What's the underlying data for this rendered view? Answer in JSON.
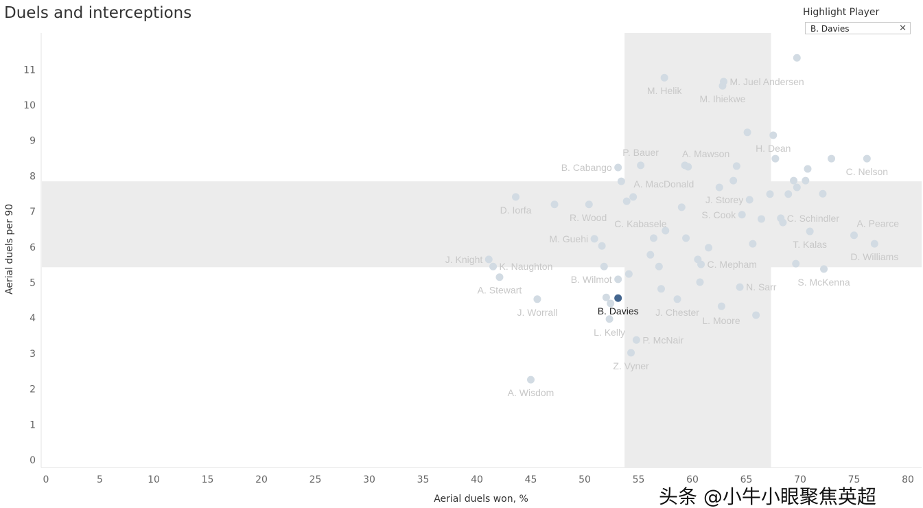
{
  "title": "Duels and interceptions",
  "filter": {
    "title": "Highlight Player",
    "value": "B. Davies",
    "clear_icon": "close-icon"
  },
  "watermark": "头条 @小牛小眼聚焦英超",
  "colors": {
    "point": "#d2dbe3",
    "highlight": "#44668f",
    "band": "#ececec",
    "label": "#c8c8c8"
  },
  "chart_data": {
    "type": "scatter",
    "title": "Duels and interceptions",
    "xlabel": "Aerial duels won, %",
    "ylabel": "Aerial duels per 90",
    "xlim": [
      0,
      80
    ],
    "ylim": [
      0,
      12
    ],
    "xticks": [
      0,
      5,
      10,
      15,
      20,
      25,
      30,
      35,
      40,
      45,
      50,
      55,
      60,
      65,
      70,
      75,
      80
    ],
    "yticks": [
      0,
      1,
      2,
      3,
      4,
      5,
      6,
      7,
      8,
      9,
      10,
      11
    ],
    "grid": false,
    "highlighted": "B. Davies",
    "bands": {
      "x_range": [
        53.7,
        67.3
      ],
      "y_range": [
        5.43,
        7.85
      ]
    },
    "points": [
      {
        "x": 69.7,
        "y": 11.33
      },
      {
        "x": 57.4,
        "y": 10.77,
        "name": "M. Helik"
      },
      {
        "x": 62.9,
        "y": 10.66,
        "name": "M. Juel Andersen"
      },
      {
        "x": 62.8,
        "y": 10.54,
        "name": "M. Ihiekwe"
      },
      {
        "x": 65.1,
        "y": 9.23
      },
      {
        "x": 67.5,
        "y": 9.15,
        "name": "H. Dean"
      },
      {
        "x": 67.7,
        "y": 8.49
      },
      {
        "x": 72.9,
        "y": 8.49
      },
      {
        "x": 76.2,
        "y": 8.49,
        "name": "C. Nelson"
      },
      {
        "x": 53.1,
        "y": 8.24,
        "name": "B. Cabango"
      },
      {
        "x": 55.2,
        "y": 8.3,
        "name": "P. Bauer"
      },
      {
        "x": 59.3,
        "y": 8.3,
        "name": "A. Mawson"
      },
      {
        "x": 59.6,
        "y": 8.26
      },
      {
        "x": 64.1,
        "y": 8.28
      },
      {
        "x": 70.7,
        "y": 8.2
      },
      {
        "x": 53.4,
        "y": 7.85,
        "name": "A. MacDonald"
      },
      {
        "x": 63.8,
        "y": 7.87
      },
      {
        "x": 69.4,
        "y": 7.87
      },
      {
        "x": 70.5,
        "y": 7.87
      },
      {
        "x": 62.5,
        "y": 7.68
      },
      {
        "x": 69.7,
        "y": 7.68
      },
      {
        "x": 67.2,
        "y": 7.49
      },
      {
        "x": 68.9,
        "y": 7.49
      },
      {
        "x": 72.1,
        "y": 7.5
      },
      {
        "x": 65.3,
        "y": 7.33,
        "name": "J. Storey"
      },
      {
        "x": 43.6,
        "y": 7.41,
        "name": "D. Iorfa"
      },
      {
        "x": 47.2,
        "y": 7.2
      },
      {
        "x": 50.4,
        "y": 7.2,
        "name": "R. Wood"
      },
      {
        "x": 54.5,
        "y": 7.41
      },
      {
        "x": 53.9,
        "y": 7.29,
        "name": "C. Kabasele"
      },
      {
        "x": 59.0,
        "y": 7.12
      },
      {
        "x": 64.6,
        "y": 6.91,
        "name": "S. Cook"
      },
      {
        "x": 66.4,
        "y": 6.79
      },
      {
        "x": 68.2,
        "y": 6.81,
        "name": "C. Schindler"
      },
      {
        "x": 68.4,
        "y": 6.69
      },
      {
        "x": 57.5,
        "y": 6.46
      },
      {
        "x": 70.9,
        "y": 6.44,
        "name": "T. Kalas"
      },
      {
        "x": 75.0,
        "y": 6.33,
        "name": "A. Pearce"
      },
      {
        "x": 76.9,
        "y": 6.09,
        "name": "D. Williams"
      },
      {
        "x": 50.9,
        "y": 6.23,
        "name": "M. Guehi"
      },
      {
        "x": 51.6,
        "y": 6.03
      },
      {
        "x": 56.4,
        "y": 6.25
      },
      {
        "x": 59.4,
        "y": 6.25
      },
      {
        "x": 65.6,
        "y": 6.09
      },
      {
        "x": 61.5,
        "y": 5.98
      },
      {
        "x": 56.1,
        "y": 5.78
      },
      {
        "x": 60.5,
        "y": 5.65
      },
      {
        "x": 60.8,
        "y": 5.51,
        "name": "C. Mepham"
      },
      {
        "x": 41.1,
        "y": 5.65,
        "name": "J. Knight"
      },
      {
        "x": 41.5,
        "y": 5.45,
        "name": "K. Naughton"
      },
      {
        "x": 51.8,
        "y": 5.45
      },
      {
        "x": 56.9,
        "y": 5.45
      },
      {
        "x": 69.6,
        "y": 5.53
      },
      {
        "x": 72.2,
        "y": 5.38,
        "name": "S. McKenna"
      },
      {
        "x": 42.1,
        "y": 5.15,
        "name": "A. Stewart"
      },
      {
        "x": 54.1,
        "y": 5.24
      },
      {
        "x": 53.1,
        "y": 5.09,
        "name": "B. Wilmot"
      },
      {
        "x": 60.7,
        "y": 5.01
      },
      {
        "x": 64.4,
        "y": 4.87,
        "name": "N. Sarr"
      },
      {
        "x": 57.1,
        "y": 4.82
      },
      {
        "x": 45.6,
        "y": 4.53,
        "name": "J. Worrall"
      },
      {
        "x": 52.0,
        "y": 4.58
      },
      {
        "x": 52.4,
        "y": 4.41
      },
      {
        "x": 58.6,
        "y": 4.53,
        "name": "J. Chester"
      },
      {
        "x": 62.7,
        "y": 4.33,
        "name": "L. Moore"
      },
      {
        "x": 65.9,
        "y": 4.08
      },
      {
        "x": 52.3,
        "y": 3.97,
        "name": "L. Kelly"
      },
      {
        "x": 54.8,
        "y": 3.38,
        "name": "P. McNair"
      },
      {
        "x": 54.3,
        "y": 3.02,
        "name": "Z. Vyner"
      },
      {
        "x": 45.0,
        "y": 2.26,
        "name": "A. Wisdom"
      },
      {
        "x": 53.1,
        "y": 4.56,
        "name": "B. Davies"
      }
    ]
  }
}
